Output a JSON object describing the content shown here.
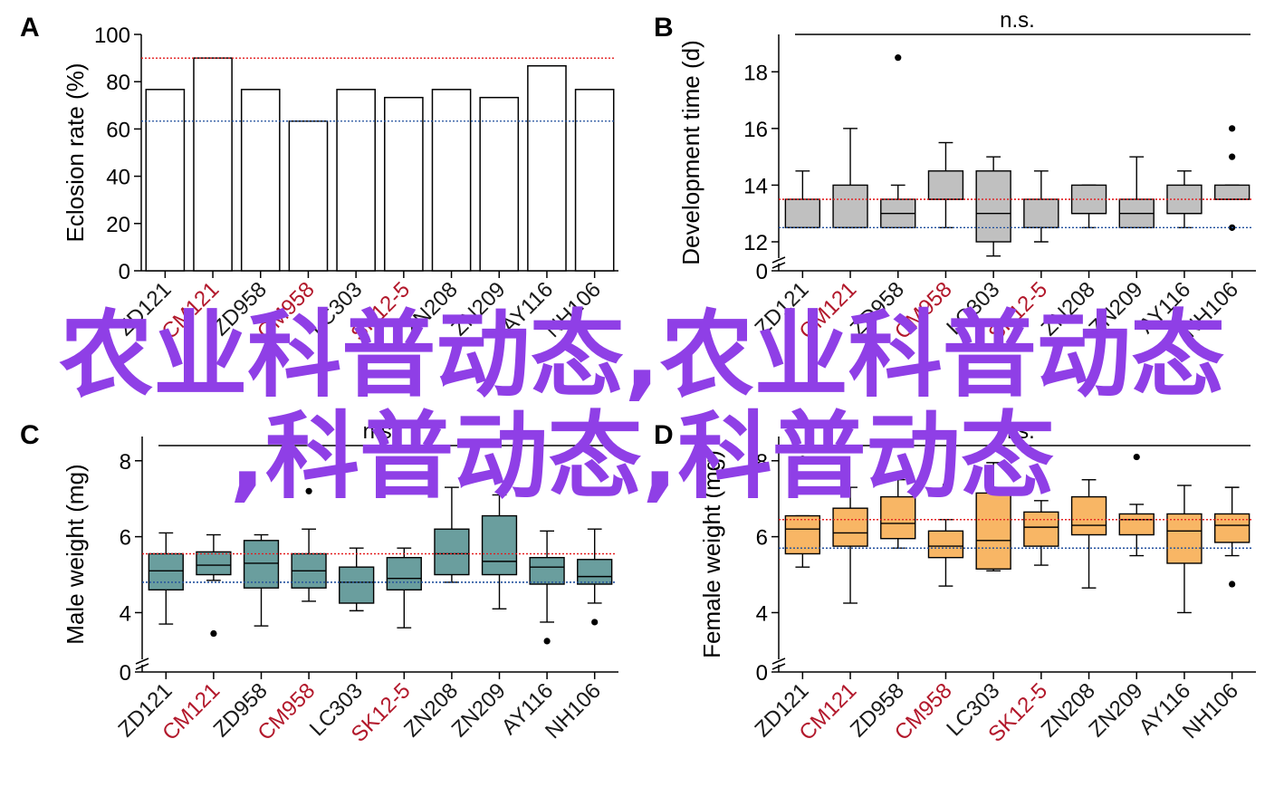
{
  "overlay_text": {
    "line1": "农业科普动态,农业科普动态",
    "line2": ",科普动态,科普动态"
  },
  "colors": {
    "highlight_label": "#b2182b",
    "normal_label": "#1a1a1a",
    "red_reference": "#e31a1c",
    "blue_reference": "#1f4e9c",
    "bar_fill": "#ffffff",
    "box_fill_B": "#c0c0c0",
    "box_fill_C": "#6a9e9e",
    "box_fill_D": "#f8b665",
    "overlay": "#8f3fe6"
  },
  "chart_data": [
    {
      "panel": "A",
      "type": "bar",
      "ylabel": "Eclosion rate (%)",
      "ylim": [
        0,
        100
      ],
      "yticks": [
        0,
        20,
        40,
        60,
        80,
        100
      ],
      "categories": [
        "ZD121",
        "CM121",
        "ZD958",
        "CM958",
        "LC303",
        "SK12-5",
        "ZN208",
        "ZN209",
        "AY116",
        "NH106"
      ],
      "highlighted_categories": [
        "CM121",
        "CM958",
        "SK12-5"
      ],
      "values": [
        76.7,
        90,
        76.7,
        63.3,
        76.7,
        73.3,
        76.7,
        73.3,
        86.7,
        76.7
      ],
      "reference_lines": [
        {
          "value": 90,
          "color": "red"
        },
        {
          "value": 63.3,
          "color": "blue"
        }
      ]
    },
    {
      "panel": "B",
      "type": "box",
      "ylabel": "Development time (d)",
      "ylim": [
        12,
        19
      ],
      "yticks": [
        12,
        14,
        16,
        18
      ],
      "axis_break_zero": true,
      "significance": "n.s.",
      "categories": [
        "ZD121",
        "CM121",
        "ZD958",
        "CM958",
        "LC303",
        "SK12-5",
        "ZN208",
        "ZN209",
        "AY116",
        "NH106"
      ],
      "highlighted_categories": [
        "CM121",
        "CM958",
        "SK12-5"
      ],
      "boxes": [
        {
          "min": 12.5,
          "q1": 12.5,
          "median": 12.5,
          "q3": 13.5,
          "max": 14.5,
          "outliers": []
        },
        {
          "min": 12.5,
          "q1": 12.5,
          "median": 12.5,
          "q3": 14,
          "max": 16,
          "outliers": []
        },
        {
          "min": 12.5,
          "q1": 12.5,
          "median": 13,
          "q3": 13.5,
          "max": 14,
          "outliers": [
            18.5
          ]
        },
        {
          "min": 12.5,
          "q1": 13.5,
          "median": 13.5,
          "q3": 14.5,
          "max": 15.5,
          "outliers": []
        },
        {
          "min": 11.5,
          "q1": 12,
          "median": 13,
          "q3": 14.5,
          "max": 15,
          "outliers": []
        },
        {
          "min": 12,
          "q1": 12.5,
          "median": 12.5,
          "q3": 13.5,
          "max": 14.5,
          "outliers": []
        },
        {
          "min": 12.5,
          "q1": 13,
          "median": 13,
          "q3": 14,
          "max": 14,
          "outliers": []
        },
        {
          "min": 12.5,
          "q1": 12.5,
          "median": 13,
          "q3": 13.5,
          "max": 15,
          "outliers": []
        },
        {
          "min": 12.5,
          "q1": 13,
          "median": 13,
          "q3": 14,
          "max": 14.5,
          "outliers": []
        },
        {
          "min": 13.5,
          "q1": 13.5,
          "median": 13.5,
          "q3": 14,
          "max": 14,
          "outliers": [
            16,
            15,
            12.5
          ]
        }
      ],
      "reference_lines": [
        {
          "value": 13.5,
          "color": "red"
        },
        {
          "value": 12.5,
          "color": "blue"
        }
      ]
    },
    {
      "panel": "C",
      "type": "box",
      "ylabel": "Male weight (mg)",
      "ylim": [
        3.2,
        8.4
      ],
      "yticks": [
        4,
        6,
        8
      ],
      "axis_break_zero": true,
      "significance": "n.s.",
      "categories": [
        "ZD121",
        "CM121",
        "ZD958",
        "CM958",
        "LC303",
        "SK12-5",
        "ZN208",
        "ZN209",
        "AY116",
        "NH106"
      ],
      "highlighted_categories": [
        "CM121",
        "CM958",
        "SK12-5"
      ],
      "boxes": [
        {
          "min": 3.7,
          "q1": 4.6,
          "median": 5.1,
          "q3": 5.55,
          "max": 6.1,
          "outliers": []
        },
        {
          "min": 4.85,
          "q1": 5.0,
          "median": 5.25,
          "q3": 5.6,
          "max": 6.05,
          "outliers": [
            3.45
          ]
        },
        {
          "min": 3.65,
          "q1": 4.65,
          "median": 5.3,
          "q3": 5.9,
          "max": 6.05,
          "outliers": []
        },
        {
          "min": 4.3,
          "q1": 4.65,
          "median": 5.1,
          "q3": 5.55,
          "max": 6.2,
          "outliers": [
            7.2
          ]
        },
        {
          "min": 4.05,
          "q1": 4.25,
          "median": 4.8,
          "q3": 5.2,
          "max": 5.7,
          "outliers": []
        },
        {
          "min": 3.6,
          "q1": 4.6,
          "median": 4.9,
          "q3": 5.45,
          "max": 5.7,
          "outliers": []
        },
        {
          "min": 4.8,
          "q1": 5.0,
          "median": 5.55,
          "q3": 6.2,
          "max": 7.3,
          "outliers": []
        },
        {
          "min": 4.1,
          "q1": 5.0,
          "median": 5.35,
          "q3": 6.55,
          "max": 7.1,
          "outliers": []
        },
        {
          "min": 3.75,
          "q1": 4.75,
          "median": 5.2,
          "q3": 5.45,
          "max": 6.15,
          "outliers": [
            3.25
          ]
        },
        {
          "min": 4.25,
          "q1": 4.75,
          "median": 4.95,
          "q3": 5.4,
          "max": 6.2,
          "outliers": [
            3.75
          ]
        }
      ],
      "reference_lines": [
        {
          "value": 5.55,
          "color": "red"
        },
        {
          "value": 4.8,
          "color": "blue"
        }
      ]
    },
    {
      "panel": "D",
      "type": "box",
      "ylabel": "Female weight (mg)",
      "ylim": [
        3.2,
        8.4
      ],
      "yticks": [
        4,
        6,
        8
      ],
      "axis_break_zero": true,
      "significance": "n.s.",
      "categories": [
        "ZD121",
        "CM121",
        "ZD958",
        "CM958",
        "LC303",
        "SK12-5",
        "ZN208",
        "ZN209",
        "AY116",
        "NH106"
      ],
      "highlighted_categories": [
        "CM121",
        "CM958",
        "SK12-5"
      ],
      "boxes": [
        {
          "min": 5.2,
          "q1": 5.55,
          "median": 6.2,
          "q3": 6.55,
          "max": 6.55,
          "outliers": [
            8.05
          ]
        },
        {
          "min": 4.25,
          "q1": 5.75,
          "median": 6.1,
          "q3": 6.75,
          "max": 7.3,
          "outliers": []
        },
        {
          "min": 5.7,
          "q1": 5.95,
          "median": 6.35,
          "q3": 7.05,
          "max": 7.5,
          "outliers": []
        },
        {
          "min": 4.7,
          "q1": 5.45,
          "median": 5.75,
          "q3": 6.15,
          "max": 6.45,
          "outliers": [
            7.35
          ]
        },
        {
          "min": 5.1,
          "q1": 5.15,
          "median": 5.9,
          "q3": 7.15,
          "max": 7.95,
          "outliers": []
        },
        {
          "min": 5.25,
          "q1": 5.75,
          "median": 6.25,
          "q3": 6.65,
          "max": 6.95,
          "outliers": []
        },
        {
          "min": 4.65,
          "q1": 6.05,
          "median": 6.3,
          "q3": 7.05,
          "max": 7.5,
          "outliers": []
        },
        {
          "min": 5.5,
          "q1": 6.05,
          "median": 6.45,
          "q3": 6.6,
          "max": 6.85,
          "outliers": [
            8.1
          ]
        },
        {
          "min": 4.0,
          "q1": 5.3,
          "median": 6.15,
          "q3": 6.6,
          "max": 7.35,
          "outliers": []
        },
        {
          "min": 5.5,
          "q1": 5.85,
          "median": 6.3,
          "q3": 6.6,
          "max": 7.3,
          "outliers": [
            4.75
          ]
        }
      ],
      "reference_lines": [
        {
          "value": 6.45,
          "color": "red"
        },
        {
          "value": 5.7,
          "color": "blue"
        }
      ]
    }
  ]
}
